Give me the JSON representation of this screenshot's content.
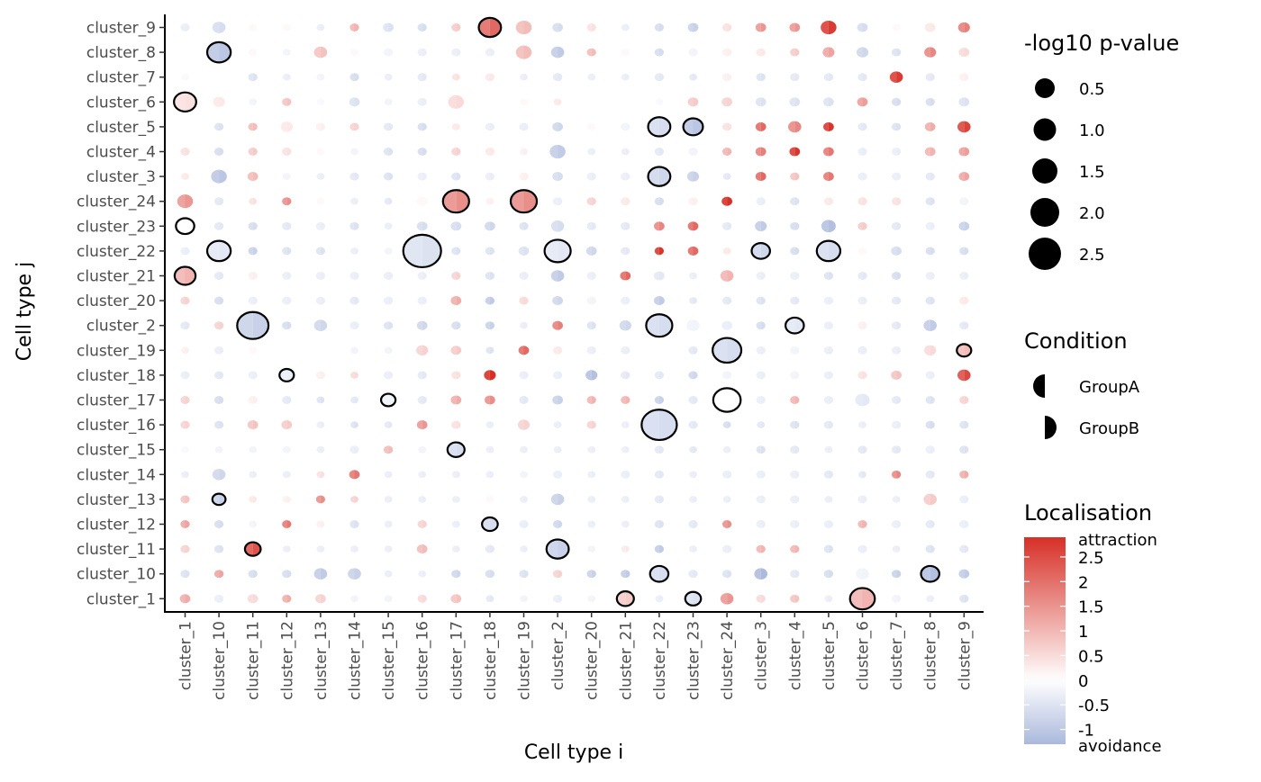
{
  "chart_data": {
    "type": "dot-heatmap",
    "xlabel": "Cell type i",
    "ylabel": "Cell type j",
    "x_categories": [
      "cluster_1",
      "cluster_10",
      "cluster_11",
      "cluster_12",
      "cluster_13",
      "cluster_14",
      "cluster_15",
      "cluster_16",
      "cluster_17",
      "cluster_18",
      "cluster_19",
      "cluster_2",
      "cluster_20",
      "cluster_21",
      "cluster_22",
      "cluster_23",
      "cluster_24",
      "cluster_3",
      "cluster_4",
      "cluster_5",
      "cluster_6",
      "cluster_7",
      "cluster_8",
      "cluster_9"
    ],
    "y_categories": [
      "cluster_9",
      "cluster_8",
      "cluster_7",
      "cluster_6",
      "cluster_5",
      "cluster_4",
      "cluster_3",
      "cluster_24",
      "cluster_23",
      "cluster_22",
      "cluster_21",
      "cluster_20",
      "cluster_2",
      "cluster_19",
      "cluster_18",
      "cluster_17",
      "cluster_16",
      "cluster_15",
      "cluster_14",
      "cluster_13",
      "cluster_12",
      "cluster_11",
      "cluster_10",
      "cluster_1"
    ],
    "values": [
      [
        -0.3,
        -0.6,
        0.1,
        0.1,
        -0.3,
        1.0,
        -0.5,
        -0.6,
        0.7,
        2.0,
        0.9,
        -0.6,
        0.4,
        -0.3,
        -0.6,
        -0.8,
        0.4,
        1.4,
        1.4,
        2.6,
        -0.6,
        0.1,
        0.3,
        1.7
      ],
      [
        0.0,
        -1.0,
        0.1,
        -0.2,
        0.8,
        0.1,
        -0.2,
        -0.3,
        -0.3,
        -0.3,
        0.9,
        -0.9,
        0.9,
        0.1,
        -0.6,
        -0.2,
        0.2,
        0.3,
        0.7,
        1.2,
        -0.7,
        -0.5,
        1.6,
        0.5
      ],
      [
        -0.1,
        0.0,
        -0.5,
        -0.3,
        -0.2,
        -0.6,
        -0.3,
        -0.4,
        0.4,
        0.3,
        -0.3,
        -0.4,
        -0.3,
        -0.3,
        -0.4,
        -0.4,
        0.2,
        -0.5,
        -0.4,
        -0.4,
        -0.4,
        2.6,
        -0.4,
        0.2
      ],
      [
        0.4,
        0.3,
        -0.2,
        0.8,
        -0.1,
        -0.5,
        -0.2,
        -0.3,
        0.5,
        0.0,
        0.1,
        0.3,
        0.0,
        0.0,
        -0.1,
        0.7,
        0.6,
        -0.5,
        -0.5,
        -0.5,
        1.3,
        -0.6,
        -0.6,
        -0.5
      ],
      [
        0.0,
        -0.5,
        0.9,
        0.3,
        0.2,
        0.6,
        -0.4,
        -0.6,
        0.3,
        -0.3,
        -0.3,
        -0.7,
        0.1,
        -0.2,
        -0.6,
        -1.0,
        0.4,
        2.0,
        1.6,
        2.7,
        -0.4,
        -0.5,
        1.1,
        2.5
      ],
      [
        0.4,
        -0.6,
        0.7,
        0.4,
        0.1,
        -0.2,
        -0.5,
        -0.6,
        0.6,
        0.3,
        0.2,
        -0.9,
        -0.3,
        -0.3,
        -0.4,
        -0.2,
        1.0,
        1.7,
        2.7,
        1.8,
        -0.3,
        -0.3,
        1.0,
        1.3
      ],
      [
        0.3,
        -1.0,
        0.9,
        -0.2,
        -0.3,
        -0.4,
        -0.5,
        -0.3,
        -0.5,
        -0.3,
        0.2,
        -0.6,
        -0.3,
        -0.3,
        -0.7,
        -0.8,
        -0.4,
        2.0,
        0.8,
        1.8,
        -0.3,
        -0.3,
        -0.4,
        1.2
      ],
      [
        1.4,
        -0.4,
        0.4,
        1.5,
        0.1,
        -0.3,
        -0.4,
        0.1,
        1.5,
        0.2,
        1.5,
        -0.3,
        0.6,
        0.3,
        -0.6,
        0.2,
        2.8,
        -0.3,
        -0.5,
        0.3,
        0.4,
        0.4,
        -0.5,
        -0.2
      ],
      [
        0.0,
        -0.4,
        -0.6,
        -0.4,
        -0.3,
        -0.5,
        -0.3,
        -0.6,
        -0.6,
        -0.7,
        -0.5,
        -0.6,
        -0.4,
        -0.4,
        1.6,
        2.0,
        -0.4,
        -0.9,
        -0.6,
        -1.1,
        0.7,
        -0.4,
        -0.3,
        -0.8
      ],
      [
        -0.3,
        -0.4,
        -0.8,
        -0.5,
        -0.5,
        -0.3,
        -0.2,
        -0.5,
        -0.5,
        -0.5,
        -0.5,
        -0.4,
        -0.7,
        -0.4,
        2.7,
        2.0,
        0.3,
        -0.7,
        -0.6,
        -0.6,
        0.1,
        -0.6,
        -0.6,
        -0.6
      ],
      [
        1.0,
        -0.4,
        0.2,
        -0.3,
        -0.3,
        -0.3,
        -0.3,
        -0.3,
        0.6,
        -0.5,
        -0.3,
        -0.9,
        -0.3,
        2.0,
        -0.4,
        -0.3,
        1.0,
        -0.3,
        -0.3,
        -0.5,
        -0.4,
        -0.6,
        -0.3,
        -0.3
      ],
      [
        0.6,
        -0.6,
        -0.3,
        -0.3,
        -0.3,
        -0.4,
        -0.3,
        -0.3,
        1.1,
        -0.9,
        0.5,
        -0.7,
        -0.2,
        -0.3,
        -0.9,
        -0.4,
        -0.4,
        -0.5,
        -0.4,
        -0.3,
        -0.3,
        -0.4,
        -0.5,
        0.3
      ],
      [
        -0.4,
        0.6,
        -0.8,
        -0.6,
        -0.7,
        -0.3,
        -0.5,
        -0.7,
        -0.6,
        -0.8,
        -0.3,
        1.7,
        -0.5,
        -0.7,
        -0.6,
        -0.2,
        -0.3,
        -0.6,
        -0.4,
        -0.3,
        0.2,
        -0.4,
        -0.9,
        -0.4
      ],
      [
        0.2,
        -0.3,
        0.1,
        0.0,
        0.0,
        -0.2,
        -0.2,
        0.6,
        0.7,
        -0.5,
        2.0,
        0.3,
        -0.3,
        -0.3,
        0.0,
        -0.4,
        -0.6,
        -0.3,
        -0.2,
        -0.3,
        -0.3,
        -0.3,
        0.5,
        0.9
      ],
      [
        -0.3,
        -0.4,
        -0.3,
        -0.3,
        0.2,
        0.5,
        -0.3,
        -0.4,
        0.4,
        2.8,
        -0.3,
        -0.3,
        -1.1,
        -0.4,
        -0.4,
        -0.7,
        -0.2,
        -0.3,
        -0.2,
        -0.3,
        0.4,
        0.8,
        -0.3,
        2.4
      ],
      [
        0.6,
        -0.6,
        0.2,
        -0.4,
        -0.5,
        -0.4,
        -0.2,
        -0.4,
        1.1,
        1.5,
        -0.4,
        -0.8,
        1.0,
        1.0,
        -0.8,
        -0.4,
        0.0,
        -0.3,
        1.0,
        -0.3,
        -0.4,
        -0.4,
        -0.5,
        0.6
      ],
      [
        0.6,
        -0.5,
        0.8,
        0.7,
        -0.3,
        -0.5,
        -0.4,
        1.4,
        0.4,
        -0.3,
        0.6,
        -0.3,
        0.6,
        -0.3,
        -0.6,
        -0.4,
        -0.6,
        -0.4,
        -0.5,
        -0.4,
        -0.3,
        -0.3,
        -0.6,
        -0.5
      ],
      [
        -0.1,
        -0.2,
        -0.2,
        -0.2,
        -0.3,
        -0.3,
        0.9,
        -0.2,
        -0.6,
        -0.3,
        -0.3,
        -0.3,
        -0.3,
        -0.3,
        -0.4,
        -0.4,
        -0.3,
        -0.5,
        -0.4,
        -0.3,
        -0.4,
        -0.4,
        -0.3,
        -0.5
      ],
      [
        -0.3,
        -0.7,
        -0.3,
        -0.3,
        0.4,
        1.8,
        -0.3,
        -0.3,
        -0.3,
        -0.3,
        -0.2,
        -0.3,
        -0.3,
        -0.3,
        -0.4,
        -0.3,
        -0.3,
        -0.3,
        -0.3,
        -0.4,
        -0.4,
        1.6,
        -0.4,
        1.1
      ],
      [
        0.8,
        -0.8,
        0.3,
        0.2,
        1.5,
        0.6,
        -0.3,
        -0.3,
        -0.3,
        0.1,
        -0.3,
        -0.8,
        -0.3,
        -0.3,
        -0.4,
        -0.3,
        -0.3,
        -0.3,
        -0.3,
        -0.3,
        -0.3,
        -0.3,
        0.7,
        -0.3
      ],
      [
        1.2,
        -0.6,
        -0.2,
        1.8,
        0.2,
        -0.5,
        -0.3,
        0.6,
        -0.3,
        -0.6,
        -0.3,
        -0.7,
        -0.3,
        -0.3,
        -0.5,
        -0.4,
        1.5,
        -0.3,
        -0.3,
        -0.3,
        1.0,
        -0.3,
        -0.4,
        -0.3
      ],
      [
        0.6,
        -0.5,
        2.3,
        -0.3,
        -0.3,
        -0.3,
        -0.3,
        0.9,
        -0.3,
        -0.4,
        -0.3,
        -0.8,
        -0.2,
        0.3,
        -0.9,
        -0.3,
        -0.3,
        1.0,
        1.0,
        -0.5,
        -0.3,
        -0.3,
        -0.5,
        -0.4
      ],
      [
        -0.5,
        1.2,
        -0.6,
        -0.6,
        -0.9,
        -0.8,
        -0.3,
        -0.3,
        -0.7,
        -0.6,
        -0.5,
        0.6,
        -0.8,
        -0.9,
        -0.6,
        -0.4,
        -0.5,
        -1.2,
        -0.4,
        -0.6,
        -0.2,
        -0.8,
        -1.1,
        -0.9
      ],
      [
        1.1,
        -0.3,
        0.5,
        1.1,
        0.6,
        -0.2,
        -0.2,
        0.5,
        0.8,
        -0.4,
        -0.2,
        -0.3,
        -0.2,
        0.7,
        -0.3,
        -0.5,
        1.4,
        0.5,
        0.8,
        -0.3,
        1.0,
        -0.2,
        -0.3,
        -0.5
      ]
    ],
    "sizes": [
      [
        0.3,
        0.6,
        0.2,
        0.2,
        0.2,
        0.3,
        0.4,
        0.3,
        0.3,
        1.3,
        0.8,
        0.4,
        0.3,
        0.2,
        0.3,
        0.4,
        0.3,
        0.4,
        0.4,
        0.8,
        0.4,
        0.2,
        0.4,
        0.5
      ],
      [
        0.2,
        1.4,
        0.2,
        0.2,
        0.6,
        0.2,
        0.3,
        0.3,
        0.3,
        0.3,
        0.8,
        0.6,
        0.3,
        0.2,
        0.3,
        0.3,
        0.3,
        0.3,
        0.3,
        0.5,
        0.5,
        0.3,
        0.5,
        0.4
      ],
      [
        0.2,
        0.2,
        0.3,
        0.2,
        0.2,
        0.3,
        0.2,
        0.3,
        0.2,
        0.3,
        0.2,
        0.3,
        0.2,
        0.2,
        0.3,
        0.2,
        0.3,
        0.3,
        0.3,
        0.3,
        0.3,
        0.6,
        0.3,
        0.3
      ],
      [
        1.3,
        0.5,
        0.2,
        0.3,
        0.2,
        0.4,
        0.2,
        0.3,
        0.8,
        0.2,
        0.2,
        0.2,
        0.2,
        0.2,
        0.2,
        0.4,
        0.4,
        0.4,
        0.4,
        0.4,
        0.4,
        0.3,
        0.3,
        0.4
      ],
      [
        0.2,
        0.3,
        0.3,
        0.5,
        0.3,
        0.3,
        0.3,
        0.3,
        0.2,
        0.3,
        0.3,
        0.4,
        0.2,
        0.3,
        1.3,
        1.1,
        0.3,
        0.4,
        0.6,
        0.4,
        0.3,
        0.3,
        0.4,
        0.6
      ],
      [
        0.3,
        0.3,
        0.3,
        0.3,
        0.2,
        0.2,
        0.3,
        0.3,
        0.3,
        0.3,
        0.2,
        0.8,
        0.2,
        0.2,
        0.3,
        0.3,
        0.3,
        0.4,
        0.4,
        0.4,
        0.3,
        0.3,
        0.4,
        0.4
      ],
      [
        0.2,
        0.8,
        0.4,
        0.2,
        0.2,
        0.3,
        0.3,
        0.3,
        0.3,
        0.3,
        0.3,
        0.4,
        0.3,
        0.3,
        1.3,
        0.5,
        0.2,
        0.4,
        0.3,
        0.4,
        0.3,
        0.3,
        0.3,
        0.4
      ],
      [
        0.8,
        0.3,
        0.2,
        0.3,
        0.2,
        0.2,
        0.2,
        0.4,
        1.6,
        0.2,
        1.6,
        0.3,
        0.3,
        0.3,
        0.3,
        0.3,
        0.4,
        0.3,
        0.3,
        0.3,
        0.3,
        0.3,
        0.3,
        0.3
      ],
      [
        1.0,
        0.3,
        0.3,
        0.3,
        0.3,
        0.3,
        0.2,
        0.4,
        0.4,
        0.4,
        0.3,
        0.6,
        0.3,
        0.3,
        0.4,
        0.4,
        0.3,
        0.5,
        0.3,
        0.7,
        0.3,
        0.3,
        0.3,
        0.4
      ],
      [
        0.3,
        1.4,
        0.3,
        0.3,
        0.3,
        0.2,
        0.2,
        2.5,
        0.3,
        0.3,
        0.4,
        1.6,
        0.4,
        0.3,
        0.3,
        0.4,
        0.2,
        1.0,
        0.3,
        1.4,
        0.2,
        0.4,
        0.3,
        0.3
      ],
      [
        1.2,
        0.3,
        0.3,
        0.3,
        0.3,
        0.3,
        0.3,
        0.3,
        0.3,
        0.3,
        0.3,
        0.6,
        0.3,
        0.4,
        0.4,
        0.2,
        0.6,
        0.3,
        0.3,
        0.3,
        0.3,
        0.3,
        0.3,
        0.3
      ],
      [
        0.3,
        0.3,
        0.3,
        0.3,
        0.3,
        0.3,
        0.3,
        0.3,
        0.4,
        0.3,
        0.3,
        0.4,
        0.3,
        0.3,
        0.4,
        0.2,
        0.3,
        0.3,
        0.3,
        0.3,
        0.3,
        0.3,
        0.3,
        0.3
      ],
      [
        0.3,
        0.3,
        2.0,
        0.3,
        0.6,
        0.3,
        0.3,
        0.4,
        0.3,
        0.3,
        0.2,
        0.4,
        0.3,
        0.5,
        1.6,
        0.6,
        0.4,
        0.3,
        1.0,
        0.3,
        0.3,
        0.3,
        0.6,
        0.3
      ],
      [
        0.2,
        0.3,
        0.2,
        0.2,
        0.2,
        0.2,
        0.2,
        0.5,
        0.4,
        0.2,
        0.4,
        0.3,
        0.3,
        0.3,
        0.2,
        0.3,
        1.8,
        0.3,
        0.3,
        0.3,
        0.3,
        0.3,
        0.5,
        0.7
      ],
      [
        0.3,
        0.3,
        0.3,
        0.7,
        0.3,
        0.2,
        0.3,
        0.3,
        0.3,
        0.5,
        0.3,
        0.3,
        0.5,
        0.3,
        0.3,
        0.3,
        0.3,
        0.3,
        0.3,
        0.3,
        0.3,
        0.4,
        0.3,
        0.6
      ],
      [
        0.3,
        0.3,
        0.3,
        0.3,
        0.2,
        0.2,
        0.7,
        0.3,
        0.4,
        0.4,
        0.3,
        0.4,
        0.3,
        0.3,
        0.3,
        0.3,
        1.7,
        0.3,
        0.3,
        0.3,
        0.7,
        0.3,
        0.3,
        0.3
      ],
      [
        0.3,
        0.3,
        0.4,
        0.4,
        0.2,
        0.2,
        0.2,
        0.4,
        0.3,
        0.2,
        0.5,
        0.2,
        0.3,
        0.2,
        2.3,
        0.3,
        0.2,
        0.2,
        0.3,
        0.3,
        0.2,
        0.3,
        0.3,
        0.3
      ],
      [
        0.2,
        0.2,
        0.2,
        0.2,
        0.2,
        0.3,
        0.3,
        0.2,
        0.9,
        0.2,
        0.2,
        0.2,
        0.2,
        0.2,
        0.3,
        0.2,
        0.2,
        0.3,
        0.3,
        0.2,
        0.3,
        0.3,
        0.3,
        0.3
      ],
      [
        0.2,
        0.6,
        0.2,
        0.2,
        0.2,
        0.4,
        0.2,
        0.2,
        0.2,
        0.2,
        0.2,
        0.3,
        0.2,
        0.3,
        0.3,
        0.2,
        0.3,
        0.3,
        0.3,
        0.3,
        0.2,
        0.3,
        0.3,
        0.3
      ],
      [
        0.3,
        0.6,
        0.2,
        0.2,
        0.3,
        0.2,
        0.2,
        0.2,
        0.2,
        0.2,
        0.2,
        0.6,
        0.2,
        0.2,
        0.3,
        0.2,
        0.2,
        0.3,
        0.3,
        0.2,
        0.3,
        0.2,
        0.6,
        0.3
      ],
      [
        0.3,
        0.3,
        0.2,
        0.3,
        0.2,
        0.3,
        0.2,
        0.3,
        0.2,
        0.8,
        0.3,
        0.3,
        0.2,
        0.2,
        0.3,
        0.3,
        0.3,
        0.3,
        0.3,
        0.3,
        0.3,
        0.3,
        0.3,
        0.3
      ],
      [
        0.3,
        0.3,
        0.8,
        0.2,
        0.2,
        0.2,
        0.2,
        0.4,
        0.2,
        0.3,
        0.2,
        1.3,
        0.2,
        0.2,
        0.3,
        0.2,
        0.3,
        0.3,
        0.3,
        0.3,
        0.3,
        0.2,
        0.3,
        0.3
      ],
      [
        0.3,
        0.3,
        0.3,
        0.3,
        0.6,
        0.6,
        0.2,
        0.2,
        0.3,
        0.3,
        0.3,
        0.3,
        0.3,
        0.3,
        1.0,
        0.3,
        0.3,
        0.6,
        0.3,
        0.3,
        0.6,
        0.3,
        1.0,
        0.4
      ],
      [
        0.4,
        0.3,
        0.4,
        0.3,
        0.4,
        0.2,
        0.2,
        0.3,
        0.4,
        0.2,
        0.2,
        0.3,
        0.2,
        0.9,
        0.2,
        0.8,
        0.6,
        0.3,
        0.3,
        0.2,
        1.5,
        0.3,
        0.2,
        0.3
      ]
    ],
    "significant": [
      [
        9,
        0
      ],
      [
        1,
        1
      ],
      [
        0,
        3
      ],
      [
        14,
        4
      ],
      [
        15,
        4
      ],
      [
        14,
        6
      ],
      [
        8,
        7
      ],
      [
        10,
        7
      ],
      [
        0,
        8
      ],
      [
        1,
        9
      ],
      [
        7,
        9
      ],
      [
        11,
        9
      ],
      [
        17,
        9
      ],
      [
        19,
        9
      ],
      [
        0,
        10
      ],
      [
        2,
        12
      ],
      [
        14,
        12
      ],
      [
        18,
        12
      ],
      [
        16,
        13
      ],
      [
        23,
        13
      ],
      [
        3,
        14
      ],
      [
        6,
        15
      ],
      [
        16,
        15
      ],
      [
        14,
        16
      ],
      [
        8,
        17
      ],
      [
        1,
        19
      ],
      [
        9,
        20
      ],
      [
        2,
        21
      ],
      [
        11,
        21
      ],
      [
        14,
        22
      ],
      [
        22,
        22
      ],
      [
        13,
        23
      ],
      [
        15,
        23
      ],
      [
        20,
        23
      ]
    ],
    "size_legend": {
      "title": "-log10 p-value",
      "breaks": [
        0.5,
        1.0,
        1.5,
        2.0,
        2.5
      ],
      "labels": [
        "0.5",
        "1.0",
        "1.5",
        "2.0",
        "2.5"
      ]
    },
    "shape_legend": {
      "title": "Condition",
      "labels": [
        "GroupA",
        "GroupB"
      ]
    },
    "color_legend": {
      "title": "Localisation",
      "range": [
        -1.3,
        2.9
      ],
      "breaks": [
        2.5,
        2,
        1.5,
        1,
        0.5,
        0,
        -0.5,
        -1
      ],
      "labels": [
        "2.5",
        "2",
        "1.5",
        "1",
        "0.5",
        "0",
        "-0.5",
        "-1"
      ],
      "top_label": "attraction",
      "bottom_label": "avoidance",
      "color_high": "#d73027",
      "color_mid": "#ffffff",
      "color_low": "#aab8dc"
    },
    "grid": false,
    "legend_position": "right"
  }
}
